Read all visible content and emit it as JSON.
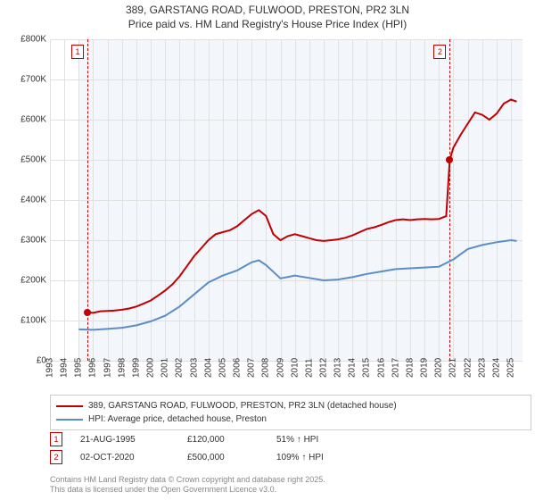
{
  "title": {
    "line1": "389, GARSTANG ROAD, FULWOOD, PRESTON, PR2 3LN",
    "line2": "Price paid vs. HM Land Registry's House Price Index (HPI)"
  },
  "chart": {
    "type": "line",
    "background_color": "#f3f6fb",
    "grid_color": "#e0e0e0",
    "y_axis": {
      "min": 0,
      "max": 800000,
      "ticks": [
        0,
        100000,
        200000,
        300000,
        400000,
        500000,
        600000,
        700000,
        800000
      ],
      "labels": [
        "£0",
        "£100K",
        "£200K",
        "£300K",
        "£400K",
        "£500K",
        "£600K",
        "£700K",
        "£800K"
      ]
    },
    "x_axis": {
      "min": 1993,
      "max": 2025.8,
      "ticks": [
        1993,
        1994,
        1995,
        1996,
        1997,
        1998,
        1999,
        2000,
        2001,
        2002,
        2003,
        2004,
        2005,
        2006,
        2007,
        2008,
        2009,
        2010,
        2011,
        2012,
        2013,
        2014,
        2015,
        2016,
        2017,
        2018,
        2019,
        2020,
        2021,
        2022,
        2023,
        2024,
        2025
      ],
      "bg_start": 1995.0,
      "bg_end": 2025.8
    },
    "series": [
      {
        "name": "price_paid",
        "color": "#c00000",
        "width": 2,
        "points": [
          [
            1995.6,
            120000
          ],
          [
            1996.0,
            119000
          ],
          [
            1996.5,
            123000
          ],
          [
            1997.0,
            124000
          ],
          [
            1997.5,
            125000
          ],
          [
            1998.0,
            127000
          ],
          [
            1998.5,
            130000
          ],
          [
            1999.0,
            135000
          ],
          [
            1999.5,
            142000
          ],
          [
            2000.0,
            150000
          ],
          [
            2000.5,
            162000
          ],
          [
            2001.0,
            175000
          ],
          [
            2001.5,
            190000
          ],
          [
            2002.0,
            210000
          ],
          [
            2002.5,
            235000
          ],
          [
            2003.0,
            260000
          ],
          [
            2003.5,
            280000
          ],
          [
            2004.0,
            300000
          ],
          [
            2004.5,
            315000
          ],
          [
            2005.0,
            320000
          ],
          [
            2005.5,
            325000
          ],
          [
            2006.0,
            335000
          ],
          [
            2006.5,
            350000
          ],
          [
            2007.0,
            365000
          ],
          [
            2007.5,
            375000
          ],
          [
            2008.0,
            360000
          ],
          [
            2008.5,
            315000
          ],
          [
            2009.0,
            300000
          ],
          [
            2009.5,
            310000
          ],
          [
            2010.0,
            315000
          ],
          [
            2010.5,
            310000
          ],
          [
            2011.0,
            305000
          ],
          [
            2011.5,
            300000
          ],
          [
            2012.0,
            298000
          ],
          [
            2012.5,
            300000
          ],
          [
            2013.0,
            302000
          ],
          [
            2013.5,
            306000
          ],
          [
            2014.0,
            312000
          ],
          [
            2014.5,
            320000
          ],
          [
            2015.0,
            328000
          ],
          [
            2015.5,
            332000
          ],
          [
            2016.0,
            338000
          ],
          [
            2016.5,
            345000
          ],
          [
            2017.0,
            350000
          ],
          [
            2017.5,
            352000
          ],
          [
            2018.0,
            350000
          ],
          [
            2018.5,
            352000
          ],
          [
            2019.0,
            353000
          ],
          [
            2019.5,
            352000
          ],
          [
            2020.0,
            353000
          ],
          [
            2020.5,
            360000
          ],
          [
            2020.75,
            500000
          ],
          [
            2021.0,
            530000
          ],
          [
            2021.5,
            562000
          ],
          [
            2022.0,
            590000
          ],
          [
            2022.5,
            618000
          ],
          [
            2023.0,
            612000
          ],
          [
            2023.5,
            600000
          ],
          [
            2024.0,
            615000
          ],
          [
            2024.5,
            640000
          ],
          [
            2025.0,
            650000
          ],
          [
            2025.4,
            645000
          ]
        ]
      },
      {
        "name": "hpi",
        "color": "#5b8ec6",
        "width": 2,
        "points": [
          [
            1995.0,
            78000
          ],
          [
            1996.0,
            77000
          ],
          [
            1997.0,
            79000
          ],
          [
            1998.0,
            82000
          ],
          [
            1999.0,
            88000
          ],
          [
            2000.0,
            98000
          ],
          [
            2001.0,
            112000
          ],
          [
            2002.0,
            135000
          ],
          [
            2003.0,
            165000
          ],
          [
            2004.0,
            195000
          ],
          [
            2005.0,
            212000
          ],
          [
            2006.0,
            225000
          ],
          [
            2007.0,
            245000
          ],
          [
            2007.5,
            250000
          ],
          [
            2008.0,
            238000
          ],
          [
            2009.0,
            205000
          ],
          [
            2010.0,
            212000
          ],
          [
            2011.0,
            206000
          ],
          [
            2012.0,
            200000
          ],
          [
            2013.0,
            202000
          ],
          [
            2014.0,
            208000
          ],
          [
            2015.0,
            216000
          ],
          [
            2016.0,
            222000
          ],
          [
            2017.0,
            228000
          ],
          [
            2018.0,
            230000
          ],
          [
            2019.0,
            232000
          ],
          [
            2020.0,
            234000
          ],
          [
            2021.0,
            252000
          ],
          [
            2022.0,
            278000
          ],
          [
            2023.0,
            288000
          ],
          [
            2024.0,
            295000
          ],
          [
            2025.0,
            300000
          ],
          [
            2025.4,
            298000
          ]
        ]
      }
    ],
    "markers": [
      {
        "n": "1",
        "x": 1995.6,
        "y": 120000
      },
      {
        "n": "2",
        "x": 2020.75,
        "y": 500000
      }
    ]
  },
  "legend": {
    "items": [
      {
        "color": "#c00000",
        "label": "389, GARSTANG ROAD, FULWOOD, PRESTON, PR2 3LN (detached house)"
      },
      {
        "color": "#5b8ec6",
        "label": "HPI: Average price, detached house, Preston"
      }
    ]
  },
  "marker_table": [
    {
      "n": "1",
      "date": "21-AUG-1995",
      "price": "£120,000",
      "pct": "51% ↑ HPI"
    },
    {
      "n": "2",
      "date": "02-OCT-2020",
      "price": "£500,000",
      "pct": "109% ↑ HPI"
    }
  ],
  "footer": {
    "line1": "Contains HM Land Registry data © Crown copyright and database right 2025.",
    "line2": "This data is licensed under the Open Government Licence v3.0."
  }
}
